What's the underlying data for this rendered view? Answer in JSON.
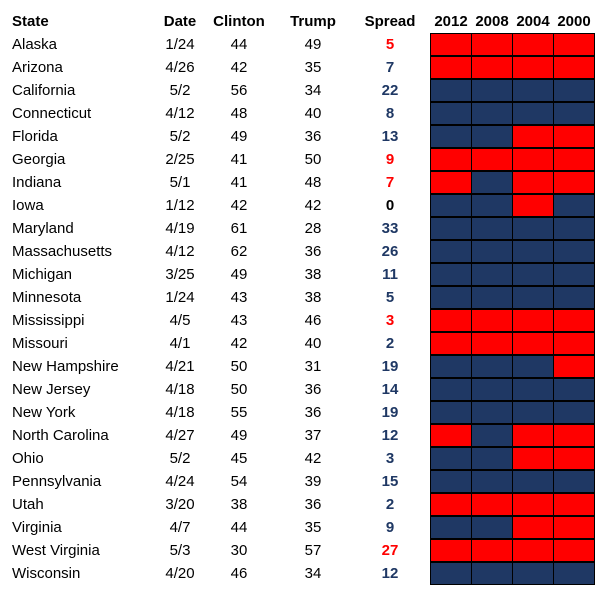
{
  "colors": {
    "rep": "#ff0000",
    "dem": "#1f3864",
    "rep_text": "#ff0000",
    "dem_text": "#1f3864",
    "neutral_text": "#000000"
  },
  "headers": {
    "state": "State",
    "date": "Date",
    "clinton": "Clinton",
    "trump": "Trump",
    "spread": "Spread",
    "years": [
      "2012",
      "2008",
      "2004",
      "2000"
    ]
  },
  "rows": [
    {
      "state": "Alaska",
      "date": "1/24",
      "clinton": "44",
      "trump": "49",
      "spread": "5",
      "lean": "R",
      "history": [
        "R",
        "R",
        "R",
        "R"
      ]
    },
    {
      "state": "Arizona",
      "date": "4/26",
      "clinton": "42",
      "trump": "35",
      "spread": "7",
      "lean": "D",
      "history": [
        "R",
        "R",
        "R",
        "R"
      ]
    },
    {
      "state": "California",
      "date": "5/2",
      "clinton": "56",
      "trump": "34",
      "spread": "22",
      "lean": "D",
      "history": [
        "D",
        "D",
        "D",
        "D"
      ]
    },
    {
      "state": "Connecticut",
      "date": "4/12",
      "clinton": "48",
      "trump": "40",
      "spread": "8",
      "lean": "D",
      "history": [
        "D",
        "D",
        "D",
        "D"
      ]
    },
    {
      "state": "Florida",
      "date": "5/2",
      "clinton": "49",
      "trump": "36",
      "spread": "13",
      "lean": "D",
      "history": [
        "D",
        "D",
        "R",
        "R"
      ]
    },
    {
      "state": "Georgia",
      "date": "2/25",
      "clinton": "41",
      "trump": "50",
      "spread": "9",
      "lean": "R",
      "history": [
        "R",
        "R",
        "R",
        "R"
      ]
    },
    {
      "state": "Indiana",
      "date": "5/1",
      "clinton": "41",
      "trump": "48",
      "spread": "7",
      "lean": "R",
      "history": [
        "R",
        "D",
        "R",
        "R"
      ]
    },
    {
      "state": "Iowa",
      "date": "1/12",
      "clinton": "42",
      "trump": "42",
      "spread": "0",
      "lean": "N",
      "history": [
        "D",
        "D",
        "R",
        "D"
      ]
    },
    {
      "state": "Maryland",
      "date": "4/19",
      "clinton": "61",
      "trump": "28",
      "spread": "33",
      "lean": "D",
      "history": [
        "D",
        "D",
        "D",
        "D"
      ]
    },
    {
      "state": "Massachusetts",
      "date": "4/12",
      "clinton": "62",
      "trump": "36",
      "spread": "26",
      "lean": "D",
      "history": [
        "D",
        "D",
        "D",
        "D"
      ]
    },
    {
      "state": "Michigan",
      "date": "3/25",
      "clinton": "49",
      "trump": "38",
      "spread": "11",
      "lean": "D",
      "history": [
        "D",
        "D",
        "D",
        "D"
      ]
    },
    {
      "state": "Minnesota",
      "date": "1/24",
      "clinton": "43",
      "trump": "38",
      "spread": "5",
      "lean": "D",
      "history": [
        "D",
        "D",
        "D",
        "D"
      ]
    },
    {
      "state": "Mississippi",
      "date": "4/5",
      "clinton": "43",
      "trump": "46",
      "spread": "3",
      "lean": "R",
      "history": [
        "R",
        "R",
        "R",
        "R"
      ]
    },
    {
      "state": "Missouri",
      "date": "4/1",
      "clinton": "42",
      "trump": "40",
      "spread": "2",
      "lean": "D",
      "history": [
        "R",
        "R",
        "R",
        "R"
      ]
    },
    {
      "state": "New Hampshire",
      "date": "4/21",
      "clinton": "50",
      "trump": "31",
      "spread": "19",
      "lean": "D",
      "history": [
        "D",
        "D",
        "D",
        "R"
      ]
    },
    {
      "state": "New Jersey",
      "date": "4/18",
      "clinton": "50",
      "trump": "36",
      "spread": "14",
      "lean": "D",
      "history": [
        "D",
        "D",
        "D",
        "D"
      ]
    },
    {
      "state": "New York",
      "date": "4/18",
      "clinton": "55",
      "trump": "36",
      "spread": "19",
      "lean": "D",
      "history": [
        "D",
        "D",
        "D",
        "D"
      ]
    },
    {
      "state": "North Carolina",
      "date": "4/27",
      "clinton": "49",
      "trump": "37",
      "spread": "12",
      "lean": "D",
      "history": [
        "R",
        "D",
        "R",
        "R"
      ]
    },
    {
      "state": "Ohio",
      "date": "5/2",
      "clinton": "45",
      "trump": "42",
      "spread": "3",
      "lean": "D",
      "history": [
        "D",
        "D",
        "R",
        "R"
      ]
    },
    {
      "state": "Pennsylvania",
      "date": "4/24",
      "clinton": "54",
      "trump": "39",
      "spread": "15",
      "lean": "D",
      "history": [
        "D",
        "D",
        "D",
        "D"
      ]
    },
    {
      "state": "Utah",
      "date": "3/20",
      "clinton": "38",
      "trump": "36",
      "spread": "2",
      "lean": "D",
      "history": [
        "R",
        "R",
        "R",
        "R"
      ]
    },
    {
      "state": "Virginia",
      "date": "4/7",
      "clinton": "44",
      "trump": "35",
      "spread": "9",
      "lean": "D",
      "history": [
        "D",
        "D",
        "R",
        "R"
      ]
    },
    {
      "state": "West Virginia",
      "date": "5/3",
      "clinton": "30",
      "trump": "57",
      "spread": "27",
      "lean": "R",
      "history": [
        "R",
        "R",
        "R",
        "R"
      ]
    },
    {
      "state": "Wisconsin",
      "date": "4/20",
      "clinton": "46",
      "trump": "34",
      "spread": "12",
      "lean": "D",
      "history": [
        "D",
        "D",
        "D",
        "D"
      ]
    }
  ]
}
